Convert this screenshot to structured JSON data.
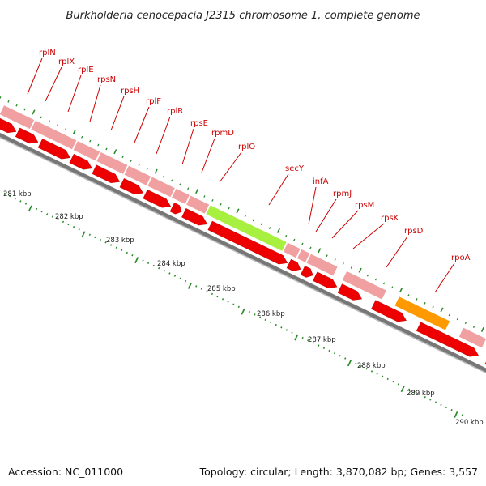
{
  "title": "Burkholderia cenocepacia J2315 chromosome 1, complete genome",
  "accession_text": "Accession: NC_011000",
  "summary_text": "Topology: circular; Length: 3,870,082 bp; Genes: 3,557",
  "colors": {
    "label": "#cc0000",
    "tick": "#2a8a2a",
    "gene_pink": "#f0a0a0",
    "gene_green": "#a8f040",
    "gene_orange": "#ff9900",
    "gene_navy": "#2a2a7a",
    "cds_red": "#ee0000",
    "backbone": "#777777"
  },
  "gene_labels": [
    "rplN",
    "rplX",
    "rplE",
    "rpsN",
    "rpsH",
    "rplF",
    "rplR",
    "rpsE",
    "rpmD",
    "rplO",
    "secY",
    "infA",
    "rpmJ",
    "rpsM",
    "rpsK",
    "rpsD",
    "rpoA"
  ],
  "kbp_labels": [
    "281 kbp",
    "282 kbp",
    "283 kbp",
    "284 kbp",
    "285 kbp",
    "286 kbp",
    "287 kbp",
    "288 kbp",
    "289 kbp",
    "290 kbp"
  ]
}
